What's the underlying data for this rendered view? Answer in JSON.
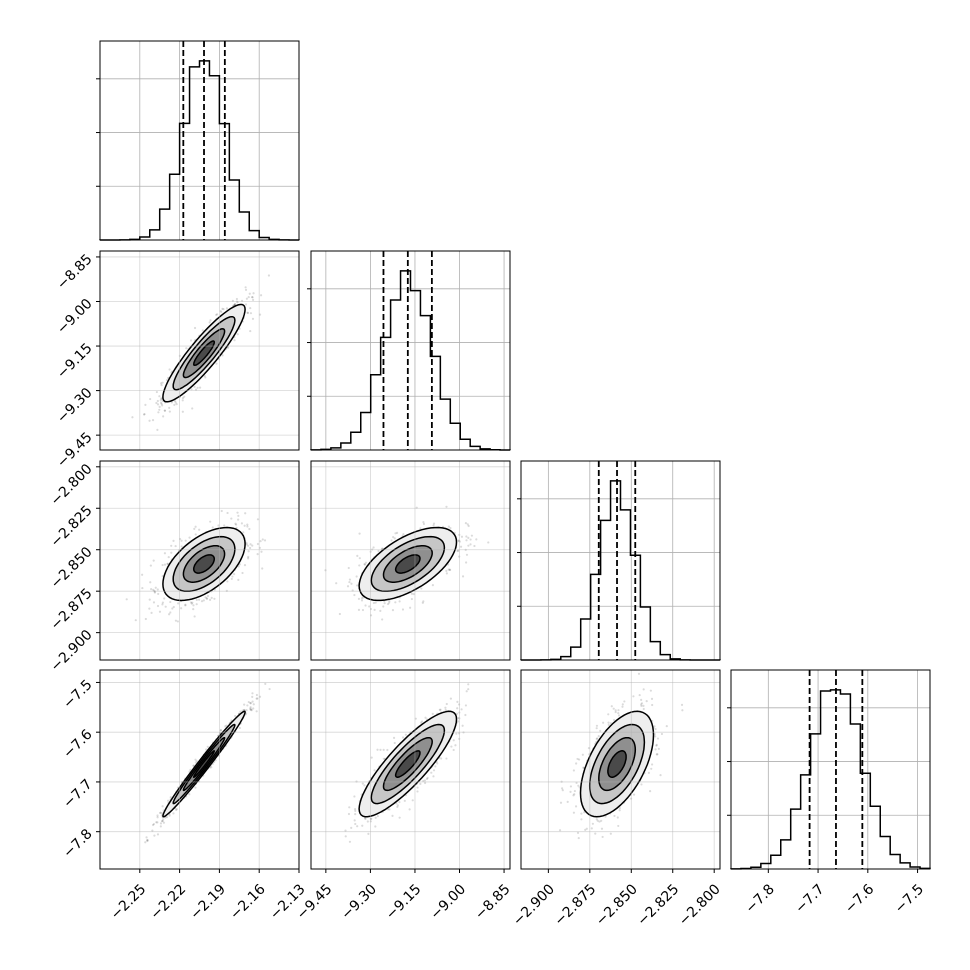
{
  "chart_data": {
    "type": "corner",
    "grid": true,
    "parameters": [
      {
        "index": 0,
        "range": [
          -2.28,
          -2.13
        ],
        "ticks": [
          "−2.25",
          "−2.22",
          "−2.19",
          "−2.16",
          "−2.13"
        ],
        "tick_values": [
          -2.25,
          -2.22,
          -2.19,
          -2.16,
          -2.13
        ],
        "quantiles": [
          -2.2172,
          -2.2016,
          -2.1859
        ],
        "mean": -2.2016,
        "sd": 0.0155
      },
      {
        "index": 1,
        "range": [
          -9.5,
          -8.83
        ],
        "ticks": [
          "−9.45",
          "−9.30",
          "−9.15",
          "−9.00",
          "−8.85"
        ],
        "tick_values": [
          -9.45,
          -9.3,
          -9.15,
          -9.0,
          -8.85
        ],
        "quantiles": [
          -9.256,
          -9.174,
          -9.093
        ],
        "mean": -9.174,
        "sd": 0.082
      },
      {
        "index": 2,
        "range": [
          -2.9165,
          -2.7965
        ],
        "ticks": [
          "−2.900",
          "−2.875",
          "−2.850",
          "−2.825",
          "−2.800"
        ],
        "tick_values": [
          -2.9,
          -2.875,
          -2.85,
          -2.825,
          -2.8
        ],
        "quantiles": [
          -2.8696,
          -2.8586,
          -2.8476
        ],
        "mean": -2.8586,
        "sd": 0.011
      },
      {
        "index": 3,
        "range": [
          -7.875,
          -7.475
        ],
        "ticks": [
          "−7.8",
          "−7.7",
          "−7.6",
          "−7.5"
        ],
        "tick_values": [
          -7.8,
          -7.7,
          -7.6,
          -7.5
        ],
        "quantiles": [
          -7.717,
          -7.664,
          -7.611
        ],
        "mean": -7.664,
        "sd": 0.053
      }
    ],
    "correlations": {
      "1-0": 0.9,
      "2-0": 0.55,
      "2-1": 0.6,
      "3-0": 0.985,
      "3-1": 0.85,
      "3-2": 0.55
    },
    "contour_levels_sigma": [
      0.5,
      1.0,
      1.5,
      2.0
    ]
  }
}
